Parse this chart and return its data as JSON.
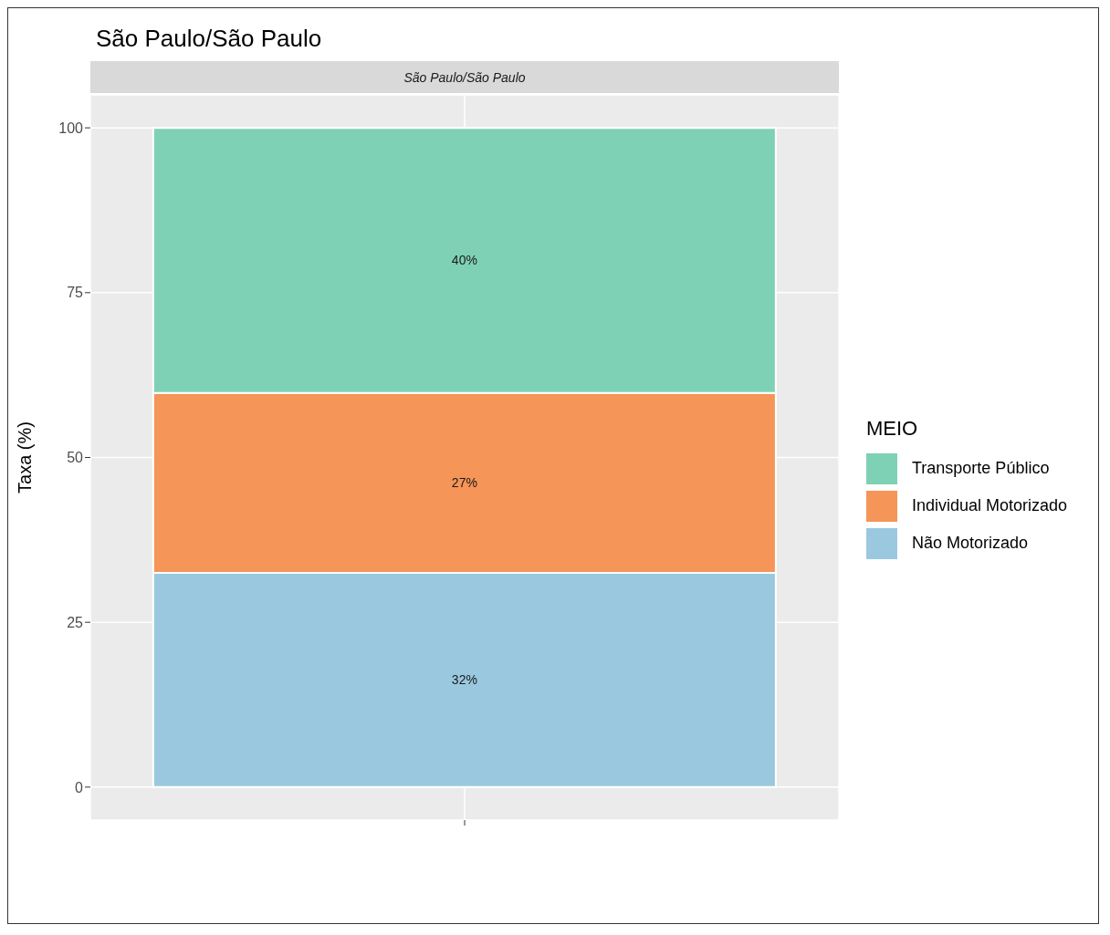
{
  "chart_data": {
    "type": "bar",
    "title": "São Paulo/São Paulo",
    "subtitle": "São Paulo/São Paulo",
    "ylabel": "Taxa (%)",
    "legend_title": "MEIO",
    "categories": [
      null
    ],
    "stacked": true,
    "series": [
      {
        "name": "Não Motorizado",
        "color": "#9ac9df",
        "values": [
          32.5
        ],
        "value_labels": [
          "32%"
        ]
      },
      {
        "name": "Individual Motorizado",
        "color": "#f59557",
        "values": [
          27.3
        ],
        "value_labels": [
          "27%"
        ]
      },
      {
        "name": "Transporte Público",
        "color": "#7fd1b5",
        "values": [
          40.2
        ],
        "value_labels": [
          "40%"
        ]
      }
    ],
    "ylim": [
      -5,
      105
    ],
    "yticks": [
      0,
      25,
      50,
      75,
      100
    ],
    "grid": true,
    "legend": "right"
  }
}
